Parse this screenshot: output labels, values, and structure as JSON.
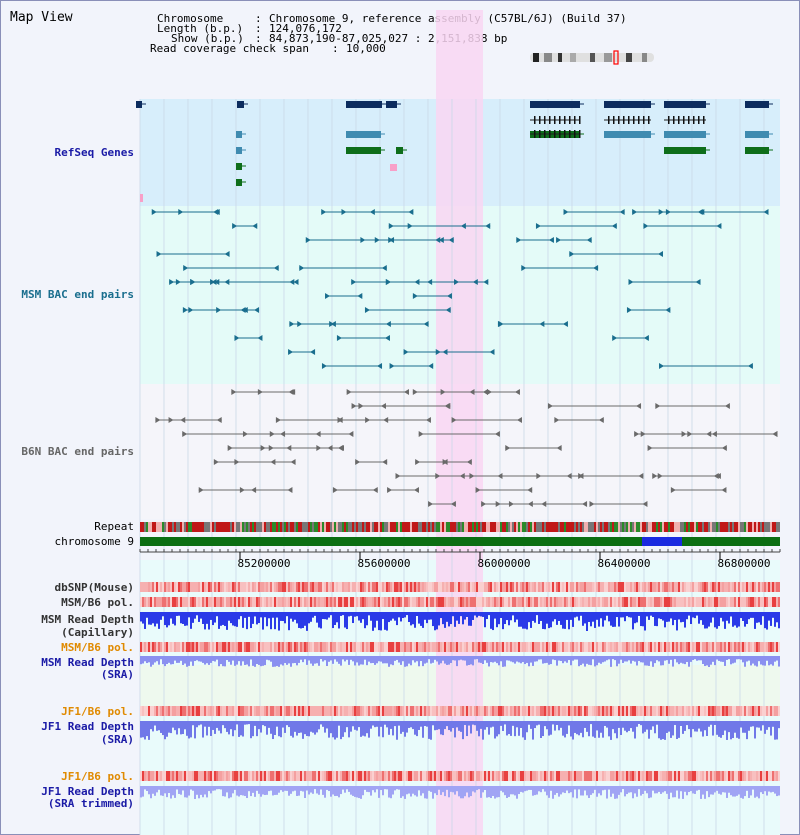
{
  "app": {
    "title": "Map View"
  },
  "header": {
    "chromosome_key": "Chromosome",
    "chromosome_val": "Chromosome 9, reference assembly (C57BL/6J) (Build 37)",
    "length_key": "Length (b.p.)",
    "length_val": "124,076,172",
    "show_key": "Show (b.p.)",
    "show_val": "84,873,190-87,025,027 : 2,151,838 bp",
    "span_key": "Read coverage check span",
    "span_val": "10,000"
  },
  "tracks": {
    "refseq": "RefSeq Genes",
    "msm_bac": "MSM BAC end pairs",
    "b6n_bac": "B6N BAC end pairs",
    "repeat": "Repeat",
    "chromosome": "chromosome 9",
    "dbsnp": "dbSNP(Mouse)",
    "msm_b6_pol_1": "MSM/B6 pol.",
    "msm_read_cap_1": "MSM Read Depth",
    "msm_read_cap_2": "(Capillary)",
    "msm_b6_pol_2": "MSM/B6 pol.",
    "msm_read_sra_1": "MSM Read Depth",
    "msm_read_sra_2": "(SRA)",
    "jf1_b6_pol_1": "JF1/B6 pol.",
    "jf1_read_sra_1": "JF1 Read Depth",
    "jf1_read_sra_2": "(SRA)",
    "jf1_b6_pol_2": "JF1/B6 pol.",
    "jf1_read_trim_1": "JF1 Read Depth",
    "jf1_read_trim_2": "(SRA trimmed)"
  },
  "ruler": {
    "ticks": [
      "85200000",
      "85600000",
      "86000000",
      "86400000",
      "86800000"
    ]
  },
  "colors": {
    "refseq_label": "#1a1aa6",
    "msm_label": "#1a6e8e",
    "b6n_label": "#666666",
    "pol_orange": "#e08a00",
    "navy_label": "#1a1aa6",
    "highlight": "#f9d6f2",
    "gene_dark": "#0c2c5e",
    "gene_mid": "#3f8bb0",
    "gene_green": "#0e6e1a"
  }
}
